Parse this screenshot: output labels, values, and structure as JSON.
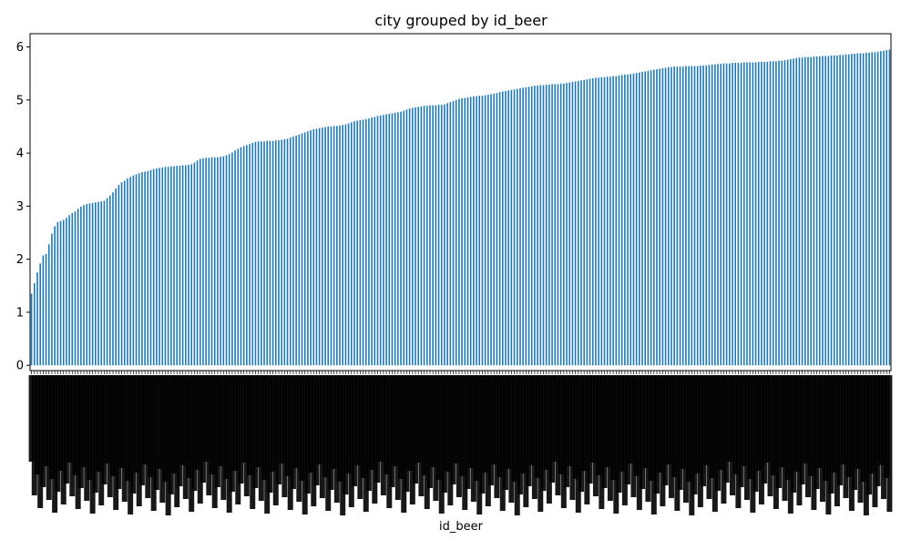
{
  "chart_data": {
    "type": "bar",
    "title": "city grouped by id_beer",
    "xlabel": "id_beer",
    "ylabel": "",
    "ylim": [
      -0.1,
      6.25
    ],
    "y_ticks": [
      0,
      1,
      2,
      3,
      4,
      5,
      6
    ],
    "bar_color": "#1f77b4",
    "grid": false,
    "legend": "none",
    "tick_label_orientation": "vertical",
    "description": "Ascending sorted bar values for ~470 id_beer categories; x tick labels are overlapping and illegible",
    "values": [
      1.35,
      1.55,
      1.75,
      1.92,
      2.07,
      2.1,
      2.28,
      2.48,
      2.62,
      2.7,
      2.72,
      2.74,
      2.78,
      2.83,
      2.87,
      2.9,
      2.95,
      2.99,
      3.02,
      3.04,
      3.05,
      3.06,
      3.07,
      3.08,
      3.09,
      3.1,
      3.15,
      3.2,
      3.26,
      3.33,
      3.4,
      3.45,
      3.48,
      3.52,
      3.55,
      3.58,
      3.6,
      3.62,
      3.64,
      3.65,
      3.66,
      3.68,
      3.7,
      3.71,
      3.72,
      3.73,
      3.74,
      3.74,
      3.75,
      3.75,
      3.76,
      3.76,
      3.77,
      3.77,
      3.78,
      3.79,
      3.82,
      3.86,
      3.89,
      3.9,
      3.91,
      3.91,
      3.92,
      3.92,
      3.92,
      3.93,
      3.94,
      3.96,
      3.98,
      4.01,
      4.05,
      4.08,
      4.11,
      4.13,
      4.15,
      4.17,
      4.19,
      4.21,
      4.22,
      4.22,
      4.22,
      4.23,
      4.23,
      4.23,
      4.24,
      4.24,
      4.25,
      4.26,
      4.27,
      4.29,
      4.31,
      4.33,
      4.35,
      4.37,
      4.39,
      4.41,
      4.43,
      4.45,
      4.46,
      4.47,
      4.48,
      4.49,
      4.5,
      4.5,
      4.51,
      4.51,
      4.52,
      4.53,
      4.54,
      4.56,
      4.58,
      4.6,
      4.61,
      4.62,
      4.63,
      4.64,
      4.65,
      4.67,
      4.68,
      4.7,
      4.71,
      4.72,
      4.73,
      4.74,
      4.75,
      4.76,
      4.77,
      4.78,
      4.8,
      4.82,
      4.84,
      4.85,
      4.86,
      4.87,
      4.88,
      4.89,
      4.89,
      4.9,
      4.9,
      4.9,
      4.91,
      4.91,
      4.92,
      4.94,
      4.96,
      4.98,
      5.0,
      5.02,
      5.03,
      5.04,
      5.05,
      5.06,
      5.07,
      5.07,
      5.08,
      5.08,
      5.09,
      5.1,
      5.11,
      5.12,
      5.13,
      5.15,
      5.16,
      5.17,
      5.18,
      5.19,
      5.2,
      5.21,
      5.22,
      5.23,
      5.24,
      5.25,
      5.26,
      5.27,
      5.27,
      5.28,
      5.28,
      5.29,
      5.29,
      5.3,
      5.3,
      5.3,
      5.31,
      5.31,
      5.32,
      5.33,
      5.34,
      5.35,
      5.36,
      5.37,
      5.38,
      5.39,
      5.4,
      5.41,
      5.42,
      5.42,
      5.43,
      5.43,
      5.44,
      5.44,
      5.45,
      5.45,
      5.46,
      5.47,
      5.48,
      5.48,
      5.49,
      5.5,
      5.51,
      5.52,
      5.53,
      5.54,
      5.55,
      5.56,
      5.57,
      5.58,
      5.59,
      5.6,
      5.61,
      5.62,
      5.62,
      5.63,
      5.63,
      5.63,
      5.63,
      5.64,
      5.64,
      5.64,
      5.64,
      5.64,
      5.65,
      5.65,
      5.65,
      5.66,
      5.67,
      5.67,
      5.68,
      5.68,
      5.69,
      5.69,
      5.69,
      5.7,
      5.7,
      5.7,
      5.7,
      5.71,
      5.71,
      5.71,
      5.71,
      5.71,
      5.72,
      5.72,
      5.72,
      5.72,
      5.73,
      5.73,
      5.73,
      5.74,
      5.74,
      5.75,
      5.76,
      5.77,
      5.78,
      5.79,
      5.8,
      5.8,
      5.81,
      5.81,
      5.81,
      5.82,
      5.82,
      5.82,
      5.83,
      5.83,
      5.83,
      5.84,
      5.84,
      5.84,
      5.85,
      5.85,
      5.86,
      5.86,
      5.87,
      5.87,
      5.88,
      5.88,
      5.88,
      5.89,
      5.89,
      5.9,
      5.9,
      5.91,
      5.92,
      5.93,
      5.94,
      5.95
    ]
  }
}
